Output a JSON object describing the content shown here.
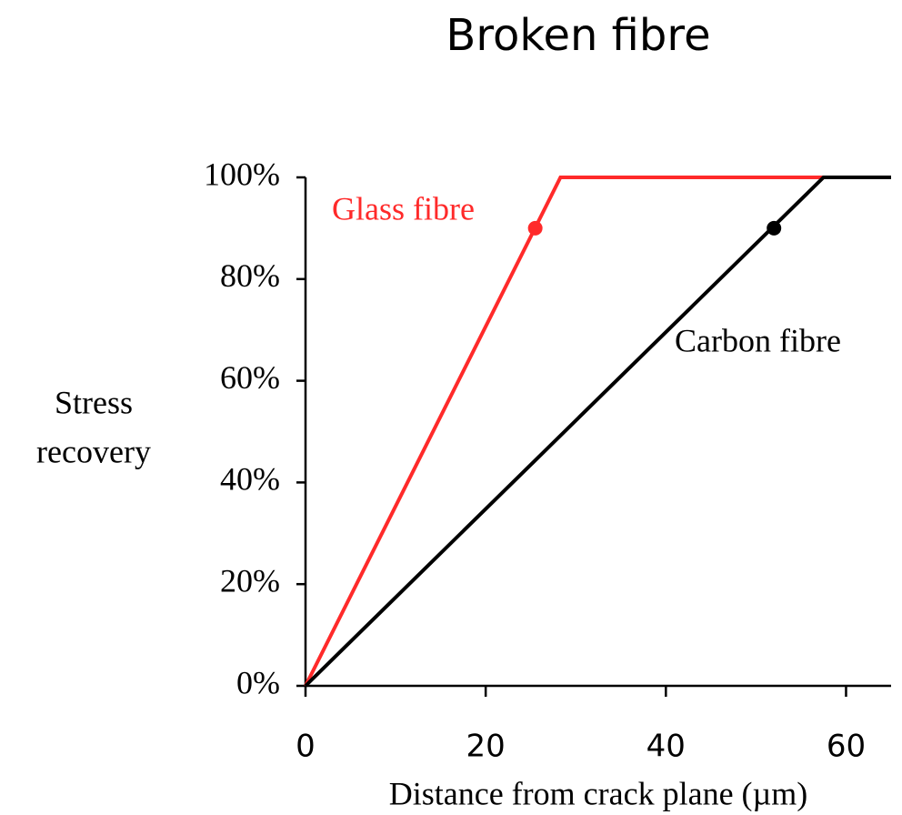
{
  "chart_data": {
    "type": "line",
    "title": "Broken fibre",
    "xlabel": "Distance from crack plane (µm)",
    "ylabel": [
      "Stress",
      "recovery"
    ],
    "xlim": [
      0,
      65
    ],
    "ylim": [
      0,
      100
    ],
    "xticks": [
      0,
      20,
      40,
      60
    ],
    "yticks": [
      {
        "value": 0,
        "label": "0%"
      },
      {
        "value": 20,
        "label": "20%"
      },
      {
        "value": 40,
        "label": "40%"
      },
      {
        "value": 60,
        "label": "60%"
      },
      {
        "value": 80,
        "label": "80%"
      },
      {
        "value": 100,
        "label": "100%"
      }
    ],
    "series": [
      {
        "name": "Glass fibre",
        "color": "#ff2a2a",
        "x": [
          0,
          28.3,
          65
        ],
        "values": [
          0,
          100,
          100
        ],
        "highlight": {
          "x": 25.5,
          "y": 90
        }
      },
      {
        "name": "Carbon fibre",
        "color": "#000000",
        "x": [
          0,
          57.5,
          65
        ],
        "values": [
          0,
          100,
          100
        ],
        "highlight": {
          "x": 52,
          "y": 90
        }
      }
    ]
  }
}
